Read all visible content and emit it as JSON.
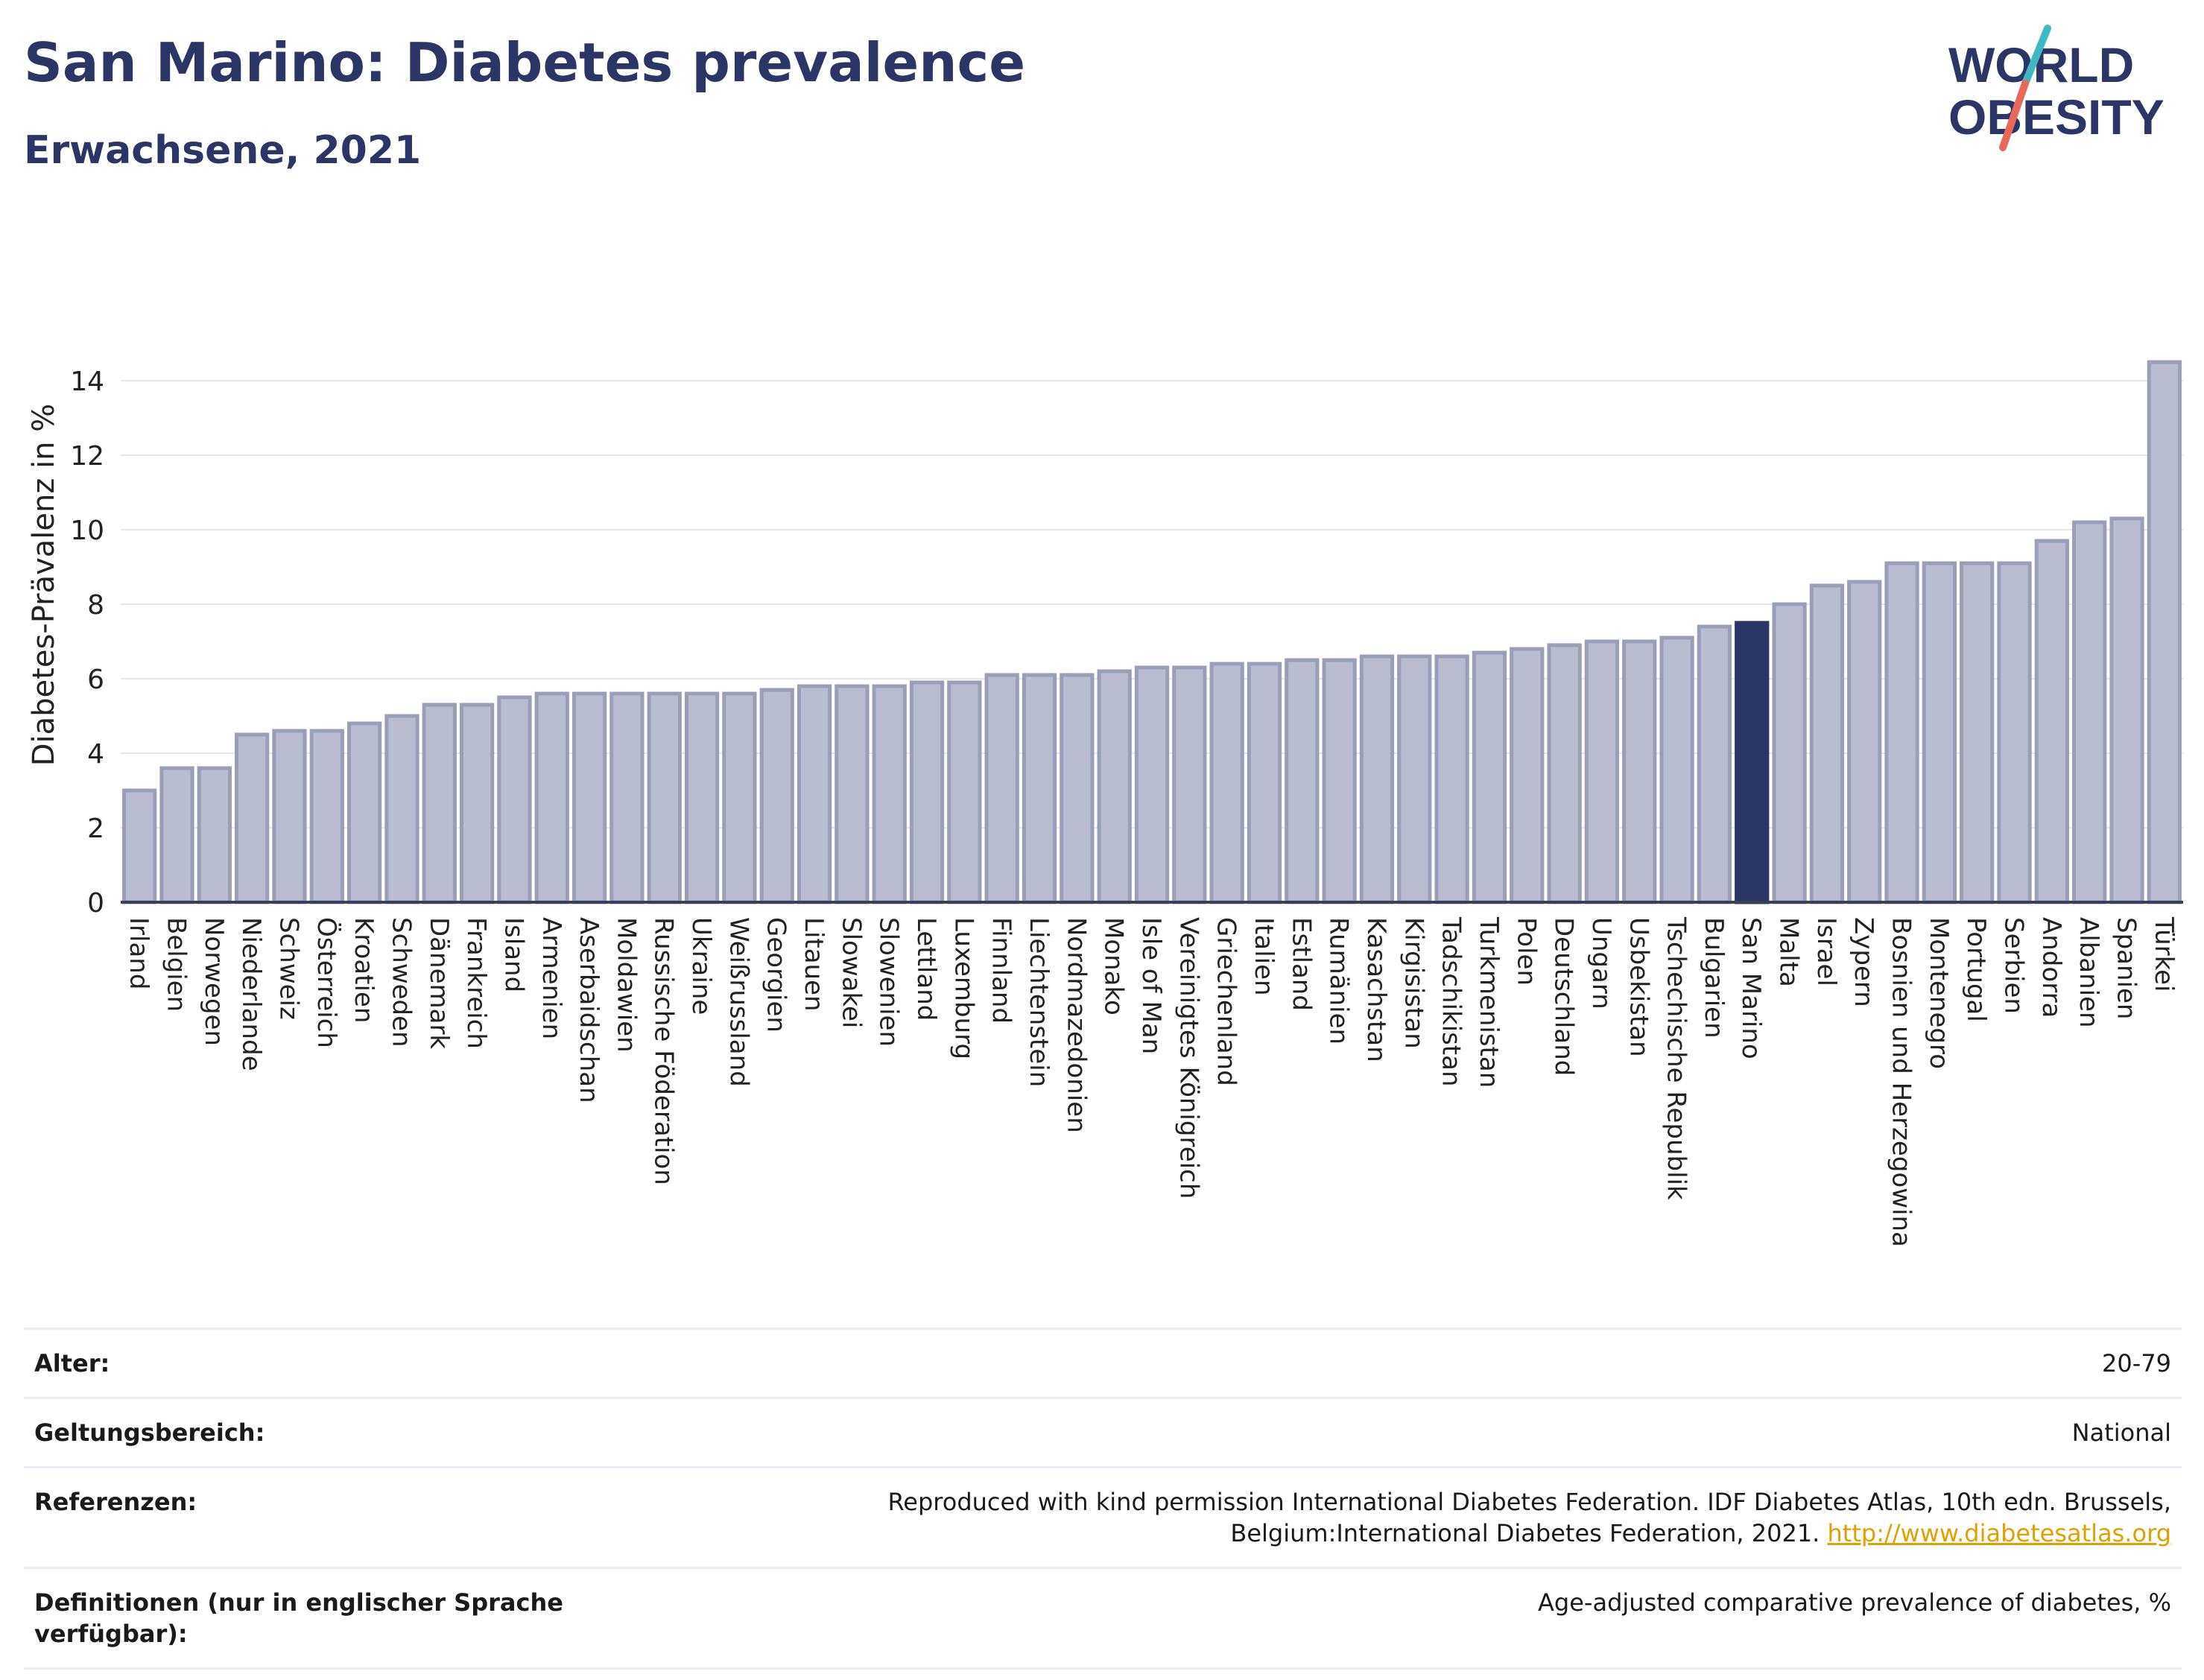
{
  "header": {
    "title": "San Marino: Diabetes prevalence",
    "subtitle": "Erwachsene, 2021"
  },
  "logo": {
    "line1": "WORLD",
    "line2": "OBESITY",
    "colors": {
      "text": "#2b3566",
      "slash_teal": "#3fb8c4",
      "slash_coral": "#e8685a"
    }
  },
  "colors": {
    "bar": "#b9bdcf",
    "bar_border": "#9a9fb8",
    "highlight": "#2b3566",
    "grid": "#e6e6ea",
    "axis": "#3a3f5c"
  },
  "chart_data": {
    "type": "bar",
    "title": "San Marino: Diabetes prevalence",
    "subtitle": "Erwachsene, 2021",
    "ylabel": "Diabetes-Prävalenz in %",
    "xlabel": "",
    "ylim": [
      0,
      15
    ],
    "yticks": [
      0,
      2,
      4,
      6,
      8,
      10,
      12,
      14
    ],
    "grid": true,
    "highlight": "San Marino",
    "categories": [
      "Irland",
      "Belgien",
      "Norwegen",
      "Niederlande",
      "Schweiz",
      "Österreich",
      "Kroatien",
      "Schweden",
      "Dänemark",
      "Frankreich",
      "Island",
      "Armenien",
      "Aserbaidschan",
      "Moldawien",
      "Russische Föderation",
      "Ukraine",
      "Weißrussland",
      "Georgien",
      "Litauen",
      "Slowakei",
      "Slowenien",
      "Lettland",
      "Luxemburg",
      "Finnland",
      "Liechtenstein",
      "Nordmazedonien",
      "Monako",
      "Isle of Man",
      "Vereinigtes Königreich",
      "Griechenland",
      "Italien",
      "Estland",
      "Rumänien",
      "Kasachstan",
      "Kirgisistan",
      "Tadschikistan",
      "Turkmenistan",
      "Polen",
      "Deutschland",
      "Ungarn",
      "Usbekistan",
      "Tschechische Republik",
      "Bulgarien",
      "San Marino",
      "Malta",
      "Israel",
      "Zypern",
      "Bosnien und Herzegowina",
      "Montenegro",
      "Portugal",
      "Serbien",
      "Andorra",
      "Albanien",
      "Spanien",
      "Türkei"
    ],
    "values": [
      3.0,
      3.6,
      3.6,
      4.5,
      4.6,
      4.6,
      4.8,
      5.0,
      5.3,
      5.3,
      5.5,
      5.6,
      5.6,
      5.6,
      5.6,
      5.6,
      5.6,
      5.7,
      5.8,
      5.8,
      5.8,
      5.9,
      5.9,
      6.1,
      6.1,
      6.1,
      6.2,
      6.3,
      6.3,
      6.4,
      6.4,
      6.5,
      6.5,
      6.6,
      6.6,
      6.6,
      6.7,
      6.8,
      6.9,
      7.0,
      7.0,
      7.1,
      7.4,
      7.5,
      8.0,
      8.5,
      8.6,
      9.1,
      9.1,
      9.1,
      9.1,
      9.7,
      10.2,
      10.3,
      14.5
    ]
  },
  "meta": {
    "rows": [
      {
        "label": "Alter:",
        "value": "20-79"
      },
      {
        "label": "Geltungsbereich:",
        "value": "National"
      },
      {
        "label": "Referenzen:",
        "value": "Reproduced with kind permission International Diabetes Federation.  IDF Diabetes Atlas, 10th edn. Brussels, Belgium:International Diabetes Federation, 2021.",
        "link": "http://www.diabetesatlas.org"
      },
      {
        "label": "Definitionen (nur in englischer Sprache verfügbar):",
        "value": "Age-adjusted comparative prevalence of diabetes, %"
      }
    ]
  }
}
